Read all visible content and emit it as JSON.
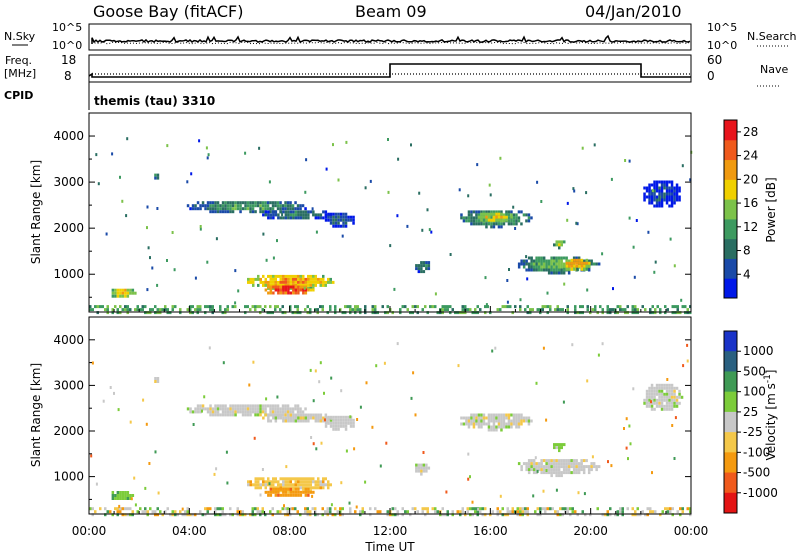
{
  "header": {
    "station": "Goose Bay (fitACF)",
    "beam": "Beam 09",
    "date": "04/Jan/2010"
  },
  "top_panels": {
    "nsky_label": "N.Sky",
    "nsky_ticks": [
      "10^5",
      "10^0"
    ],
    "nsearch_label": "N.Search",
    "nsearch_ticks": [
      "10^5",
      "10^0"
    ],
    "freq_label": "Freq.",
    "freq_unit": "[MHz]",
    "freq_ticks": [
      "18",
      "8"
    ],
    "nave_label": "Nave",
    "nave_ticks": [
      "60",
      "0"
    ],
    "cpid_label": "CPID",
    "cpid_value": "themis (tau) 3310"
  },
  "chart_data": [
    {
      "type": "heatmap",
      "panel": "power",
      "ylabel": "Slant Range [km]",
      "y_ticks": [
        "4000",
        "3000",
        "2000",
        "1000"
      ],
      "y_tick_values": [
        4000,
        3000,
        2000,
        1000
      ],
      "ylim": [
        180,
        4500
      ],
      "xlim_hours": [
        0,
        24
      ],
      "colorbar": {
        "label": "Power [dB]",
        "ticks": [
          "28",
          "24",
          "20",
          "16",
          "12",
          "8",
          "4"
        ],
        "tick_values": [
          28,
          24,
          20,
          16,
          12,
          8,
          4
        ],
        "range": [
          0,
          30
        ],
        "colors": [
          "#0018e8",
          "#1a4aa8",
          "#2a6e62",
          "#3d9a60",
          "#7cc24a",
          "#f0d000",
          "#f09a10",
          "#ef5a1c",
          "#e8141c"
        ]
      },
      "regions": [
        {
          "t0": 2.5,
          "t1": 2.8,
          "r0": 3050,
          "r1": 3250,
          "level": 10
        },
        {
          "t0": 3.8,
          "t1": 8.8,
          "r0": 2350,
          "r1": 2650,
          "level": 12
        },
        {
          "t0": 6.8,
          "t1": 9.6,
          "r0": 2200,
          "r1": 2450,
          "level": 10
        },
        {
          "t0": 9.3,
          "t1": 10.6,
          "r0": 2050,
          "r1": 2400,
          "level": 8
        },
        {
          "t0": 0.8,
          "t1": 1.8,
          "r0": 500,
          "r1": 750,
          "level": 20
        },
        {
          "t0": 6.2,
          "t1": 9.8,
          "r0": 700,
          "r1": 1050,
          "level": 22
        },
        {
          "t0": 6.9,
          "t1": 8.9,
          "r0": 570,
          "r1": 820,
          "level": 28
        },
        {
          "t0": 12.9,
          "t1": 13.6,
          "r0": 1050,
          "r1": 1350,
          "level": 10
        },
        {
          "t0": 14.7,
          "t1": 17.6,
          "r0": 2050,
          "r1": 2450,
          "level": 14
        },
        {
          "t0": 15.4,
          "t1": 16.8,
          "r0": 2150,
          "r1": 2400,
          "level": 20
        },
        {
          "t0": 17.0,
          "t1": 20.3,
          "r0": 1050,
          "r1": 1450,
          "level": 14
        },
        {
          "t0": 18.8,
          "t1": 20.0,
          "r0": 1100,
          "r1": 1400,
          "level": 22
        },
        {
          "t0": 18.4,
          "t1": 19.0,
          "r0": 1600,
          "r1": 1800,
          "level": 16
        },
        {
          "t0": 22.0,
          "t1": 23.6,
          "r0": 2450,
          "r1": 3100,
          "level": 6
        },
        {
          "t0": 0.0,
          "t1": 24.0,
          "r0": 180,
          "r1": 330,
          "level": 12
        }
      ]
    },
    {
      "type": "heatmap",
      "panel": "velocity",
      "ylabel": "Slant Range [km]",
      "xlabel": "Time UT",
      "x_ticks": [
        "00:00",
        "04:00",
        "08:00",
        "12:00",
        "16:00",
        "20:00",
        "00:00"
      ],
      "x_tick_values": [
        0,
        4,
        8,
        12,
        16,
        20,
        24
      ],
      "y_ticks": [
        "4000",
        "3000",
        "2000",
        "1000"
      ],
      "y_tick_values": [
        4000,
        3000,
        2000,
        1000
      ],
      "ylim": [
        180,
        4500
      ],
      "xlim_hours": [
        0,
        24
      ],
      "colorbar": {
        "label": "Velocity [m s^-1]",
        "ticks": [
          "1000",
          "500",
          "100",
          "25",
          "-25",
          "-100",
          "-500",
          "-1000"
        ],
        "colors": [
          "#1a33c8",
          "#2a6080",
          "#3f9a55",
          "#7ccc3a",
          "#c8c8c8",
          "#f4c84a",
          "#f49a10",
          "#f05a1c",
          "#e41414"
        ]
      },
      "regions": [
        {
          "t0": 2.5,
          "t1": 2.8,
          "r0": 3050,
          "r1": 3250,
          "cls": 4
        },
        {
          "t0": 3.8,
          "t1": 8.8,
          "r0": 2350,
          "r1": 2650,
          "cls": 4
        },
        {
          "t0": 6.8,
          "t1": 9.6,
          "r0": 2200,
          "r1": 2450,
          "cls": 4
        },
        {
          "t0": 9.3,
          "t1": 10.6,
          "r0": 2050,
          "r1": 2400,
          "cls": 4
        },
        {
          "t0": 0.8,
          "t1": 1.8,
          "r0": 500,
          "r1": 750,
          "cls": 3
        },
        {
          "t0": 6.2,
          "t1": 9.8,
          "r0": 700,
          "r1": 1050,
          "cls": 5
        },
        {
          "t0": 6.9,
          "t1": 8.9,
          "r0": 570,
          "r1": 820,
          "cls": 6
        },
        {
          "t0": 12.9,
          "t1": 13.6,
          "r0": 1050,
          "r1": 1350,
          "cls": 4
        },
        {
          "t0": 14.7,
          "t1": 17.6,
          "r0": 2050,
          "r1": 2450,
          "cls": 4
        },
        {
          "t0": 17.0,
          "t1": 20.3,
          "r0": 1050,
          "r1": 1450,
          "cls": 4
        },
        {
          "t0": 18.4,
          "t1": 19.0,
          "r0": 1600,
          "r1": 1800,
          "cls": 3
        },
        {
          "t0": 22.0,
          "t1": 23.6,
          "r0": 2450,
          "r1": 3100,
          "cls": 4
        },
        {
          "t0": 0.0,
          "t1": 24.0,
          "r0": 180,
          "r1": 330,
          "cls": 4
        }
      ]
    }
  ]
}
